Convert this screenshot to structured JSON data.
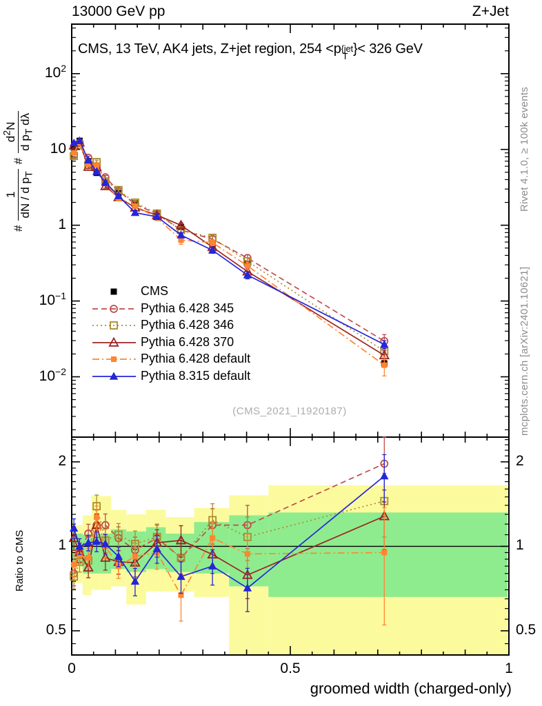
{
  "header": {
    "left_label": "13000 GeV pp",
    "right_label": "Z+Jet"
  },
  "title": {
    "prefix": "CMS, 13 TeV, AK4 jets, Z+jet region, 254 <p",
    "sup": "{jet",
    "sub": "T",
    "suffix": "}< 326 GeV"
  },
  "watermark": "(CMS_2021_I1920187)",
  "side_notes": {
    "top": "Rivet 4.1.0, ≥ 100k events",
    "bottom": "mcplots.cern.ch [arXiv:2401.10621]"
  },
  "y_label": {
    "hash1": "#",
    "frac1_num": "1",
    "frac1_den_main": "dN / d p",
    "frac1_den_sub": "T",
    "hash2": "#",
    "frac2_num_pre": "d",
    "frac2_num_sup": "2",
    "frac2_num_post": "N",
    "frac2_den_pre": "d p",
    "frac2_den_sub": "T",
    "frac2_den_post": " dλ"
  },
  "ratio_label": "Ratio to CMS",
  "x_label": "groomed width (charged-only)",
  "chart_data": {
    "type": "line",
    "title": "CMS, 13 TeV, AK4 jets, Z+jet region, 254 < pT{jet} < 326 GeV",
    "xlabel": "groomed width (charged-only)",
    "ylabel": "# 1/(dN/dpT) # d2N/(dpT dlambda)",
    "ratio_ylabel": "Ratio to CMS",
    "x_range": [
      0,
      1
    ],
    "x_ticks": [
      {
        "v": 0,
        "label": "0"
      },
      {
        "v": 0.5,
        "label": "0.5"
      },
      {
        "v": 1,
        "label": "1"
      }
    ],
    "main_y": {
      "scale": "log",
      "range": [
        0.0016,
        450
      ],
      "ticks": [
        {
          "v": 100,
          "base": "10",
          "exp": "2"
        },
        {
          "v": 10,
          "base": "10",
          "exp": ""
        },
        {
          "v": 1,
          "base": "1",
          "exp": ""
        },
        {
          "v": 0.1,
          "base": "10",
          "exp": "−1"
        },
        {
          "v": 0.01,
          "base": "10",
          "exp": "−2"
        }
      ]
    },
    "ratio_y": {
      "scale": "log",
      "range": [
        0.41,
        2.45
      ],
      "ticks": [
        {
          "v": 2,
          "label": "2"
        },
        {
          "v": 1,
          "label": "1"
        },
        {
          "v": 0.5,
          "label": "0.5"
        }
      ],
      "minor_ticks": [
        0.45,
        0.55,
        0.6,
        0.65,
        0.7,
        0.75,
        0.8,
        0.85,
        0.9,
        0.95,
        1.1,
        1.2,
        1.3,
        1.4,
        1.5,
        1.6,
        1.7,
        1.8,
        1.9,
        2.1,
        2.2,
        2.3,
        2.4
      ]
    },
    "x": [
      0.005,
      0.018,
      0.038,
      0.057,
      0.077,
      0.107,
      0.145,
      0.195,
      0.25,
      0.322,
      0.402,
      0.715
    ],
    "series": [
      {
        "name": "CMS",
        "marker": "square-filled",
        "color": "#000000",
        "line": "none",
        "values": [
          10.5,
          13.0,
          7.0,
          4.9,
          3.6,
          2.65,
          1.95,
          1.32,
          0.95,
          0.55,
          0.31,
          0.015
        ],
        "err_frac": [
          0.04,
          0.03,
          0.03,
          0.03,
          0.03,
          0.03,
          0.04,
          0.04,
          0.05,
          0.05,
          0.06,
          0.1
        ]
      },
      {
        "name": "Pythia 6.428 345",
        "marker": "circle-open",
        "color": "#bf4b4b",
        "line": "dash",
        "ratio": [
          0.8,
          0.95,
          1.11,
          1.19,
          1.19,
          1.07,
          0.97,
          1.07,
          0.91,
          1.19,
          1.19,
          1.97
        ],
        "err_frac": [
          0.06,
          0.05,
          0.05,
          0.06,
          0.06,
          0.06,
          0.07,
          0.07,
          0.08,
          0.09,
          0.11,
          0.22
        ]
      },
      {
        "name": "Pythia 6.428 346",
        "marker": "square-open",
        "color": "#ab8b2d",
        "line": "dot",
        "ratio": [
          0.78,
          0.88,
          0.89,
          1.39,
          1.05,
          1.1,
          1.02,
          1.08,
          0.91,
          1.24,
          1.08,
          1.45
        ],
        "err_frac": [
          0.06,
          0.05,
          0.05,
          0.06,
          0.06,
          0.06,
          0.07,
          0.07,
          0.08,
          0.09,
          0.11,
          0.16
        ]
      },
      {
        "name": "Pythia 6.428 370",
        "marker": "triangle-open",
        "color": "#9b2423",
        "line": "solid",
        "ratio": [
          1.07,
          0.95,
          0.84,
          1.19,
          0.91,
          0.88,
          0.875,
          1.03,
          1.05,
          0.935,
          0.79,
          1.28
        ],
        "err_frac": [
          0.06,
          0.05,
          0.05,
          0.06,
          0.06,
          0.06,
          0.07,
          0.07,
          0.08,
          0.09,
          0.11,
          0.15
        ]
      },
      {
        "name": "Pythia 6.428 default",
        "marker": "square-filled",
        "color": "#ff8532",
        "line": "dashdot",
        "ratio": [
          0.86,
          0.93,
          0.91,
          1.27,
          1.0,
          0.85,
          0.92,
          0.95,
          0.67,
          1.07,
          0.94,
          0.95
        ],
        "err_frac": [
          0.06,
          0.05,
          0.05,
          0.06,
          0.06,
          0.06,
          0.07,
          0.08,
          0.12,
          0.09,
          0.11,
          0.28
        ]
      },
      {
        "name": "Pythia 8.315 default",
        "marker": "triangle-filled",
        "color": "#2525d9",
        "line": "solid",
        "ratio": [
          1.16,
          1.0,
          1.03,
          1.04,
          1.02,
          0.92,
          0.75,
          0.98,
          0.78,
          0.85,
          0.71,
          1.78
        ],
        "err_frac": [
          0.05,
          0.04,
          0.04,
          0.05,
          0.05,
          0.05,
          0.07,
          0.07,
          0.08,
          0.09,
          0.11,
          0.12
        ]
      }
    ],
    "bands": {
      "edges": [
        0,
        0.01,
        0.025,
        0.045,
        0.065,
        0.09,
        0.125,
        0.17,
        0.215,
        0.28,
        0.36,
        0.45,
        1.0
      ],
      "yellow": [
        [
          0.74,
          1.17
        ],
        [
          0.74,
          1.19
        ],
        [
          0.67,
          1.29
        ],
        [
          0.7,
          1.52
        ],
        [
          0.7,
          1.51
        ],
        [
          0.72,
          1.35
        ],
        [
          0.62,
          1.3
        ],
        [
          0.69,
          1.35
        ],
        [
          0.69,
          1.27
        ],
        [
          0.66,
          1.37
        ],
        [
          0.4,
          1.52
        ],
        [
          0.4,
          1.65
        ]
      ],
      "green": [
        [
          0.85,
          1.1
        ],
        [
          0.85,
          1.11
        ],
        [
          0.8,
          1.1
        ],
        [
          0.8,
          1.11
        ],
        [
          0.8,
          1.11
        ],
        [
          0.83,
          1.15
        ],
        [
          0.81,
          1.13
        ],
        [
          0.83,
          1.17
        ],
        [
          0.81,
          1.11
        ],
        [
          0.8,
          1.22
        ],
        [
          0.72,
          1.29
        ],
        [
          0.66,
          1.32
        ]
      ],
      "yellow_color": "#fbfb9d",
      "green_color": "#8eec8e"
    },
    "legend_position": "mid-left"
  }
}
